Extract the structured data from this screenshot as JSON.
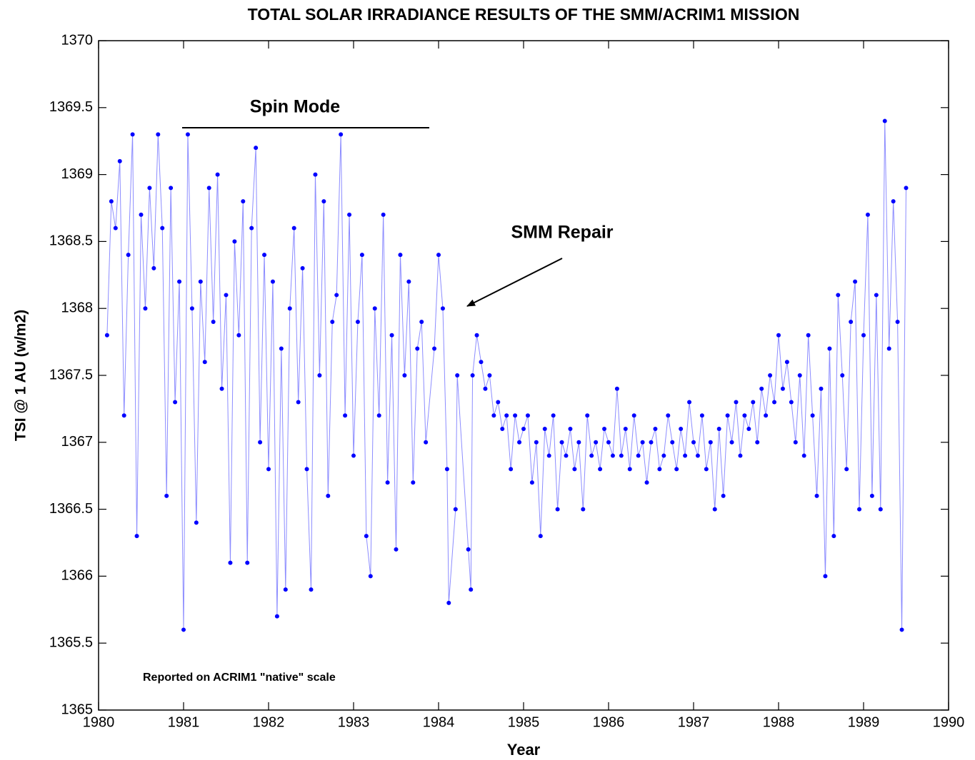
{
  "chart_data": {
    "type": "line",
    "title": "TOTAL SOLAR IRRADIANCE RESULTS OF THE SMM/ACRIM1 MISSION",
    "xlabel": "Year",
    "ylabel": "TSI @ 1 AU (w/m2)",
    "annotations": [
      "Spin Mode",
      "SMM Repair",
      "Reported on ACRIM1 \"native\" scale"
    ],
    "xlim": [
      1980,
      1990
    ],
    "xticks": [
      1980,
      1981,
      1982,
      1983,
      1984,
      1985,
      1986,
      1987,
      1988,
      1989,
      1990
    ],
    "ylim": [
      1365,
      1370
    ],
    "yticks": [
      1365,
      1365.5,
      1366,
      1366.5,
      1367,
      1367.5,
      1368,
      1368.5,
      1369,
      1369.5,
      1370
    ],
    "series": [
      {
        "name": "TSI",
        "color": "#0000ff",
        "x": [
          1980.1,
          1980.15,
          1980.2,
          1980.25,
          1980.3,
          1980.35,
          1980.4,
          1980.45,
          1980.5,
          1980.55,
          1980.6,
          1980.65,
          1980.7,
          1980.75,
          1980.8,
          1980.85,
          1980.9,
          1980.95,
          1981.0,
          1981.05,
          1981.1,
          1981.15,
          1981.2,
          1981.25,
          1981.3,
          1981.35,
          1981.4,
          1981.45,
          1981.5,
          1981.55,
          1981.6,
          1981.65,
          1981.7,
          1981.75,
          1981.8,
          1981.85,
          1981.9,
          1981.95,
          1982.0,
          1982.05,
          1982.1,
          1982.15,
          1982.2,
          1982.25,
          1982.3,
          1982.35,
          1982.4,
          1982.45,
          1982.5,
          1982.55,
          1982.6,
          1982.65,
          1982.7,
          1982.75,
          1982.8,
          1982.85,
          1982.9,
          1982.95,
          1983.0,
          1983.05,
          1983.1,
          1983.15,
          1983.2,
          1983.25,
          1983.3,
          1983.35,
          1983.4,
          1983.45,
          1983.5,
          1983.55,
          1983.6,
          1983.65,
          1983.7,
          1983.75,
          1983.8,
          1983.85,
          1983.95,
          1984.0,
          1984.05,
          1984.1,
          1984.12,
          1984.2,
          1984.22,
          1984.35,
          1984.38,
          1984.4,
          1984.45,
          1984.5,
          1984.55,
          1984.6,
          1984.65,
          1984.7,
          1984.75,
          1984.8,
          1984.85,
          1984.9,
          1984.95,
          1985.0,
          1985.05,
          1985.1,
          1985.15,
          1985.2,
          1985.25,
          1985.3,
          1985.35,
          1985.4,
          1985.45,
          1985.5,
          1985.55,
          1985.6,
          1985.65,
          1985.7,
          1985.75,
          1985.8,
          1985.85,
          1985.9,
          1985.95,
          1986.0,
          1986.05,
          1986.1,
          1986.15,
          1986.2,
          1986.25,
          1986.3,
          1986.35,
          1986.4,
          1986.45,
          1986.5,
          1986.55,
          1986.6,
          1986.65,
          1986.7,
          1986.75,
          1986.8,
          1986.85,
          1986.9,
          1986.95,
          1987.0,
          1987.05,
          1987.1,
          1987.15,
          1987.2,
          1987.25,
          1987.3,
          1987.35,
          1987.4,
          1987.45,
          1987.5,
          1987.55,
          1987.6,
          1987.65,
          1987.7,
          1987.75,
          1987.8,
          1987.85,
          1987.9,
          1987.95,
          1988.0,
          1988.05,
          1988.1,
          1988.15,
          1988.2,
          1988.25,
          1988.3,
          1988.35,
          1988.4,
          1988.45,
          1988.5,
          1988.55,
          1988.6,
          1988.65,
          1988.7,
          1988.75,
          1988.8,
          1988.85,
          1988.9,
          1988.95,
          1989.0,
          1989.05,
          1989.1,
          1989.15,
          1989.2,
          1989.25,
          1989.3,
          1989.35,
          1989.4,
          1989.45,
          1989.5
        ],
        "values": [
          1367.8,
          1368.8,
          1368.6,
          1369.1,
          1367.2,
          1368.4,
          1369.3,
          1366.3,
          1368.7,
          1368.0,
          1368.9,
          1368.3,
          1369.3,
          1368.6,
          1366.6,
          1368.9,
          1367.3,
          1368.2,
          1365.6,
          1369.3,
          1368.0,
          1366.4,
          1368.2,
          1367.6,
          1368.9,
          1367.9,
          1369.0,
          1367.4,
          1368.1,
          1366.1,
          1368.5,
          1367.8,
          1368.8,
          1366.1,
          1368.6,
          1369.2,
          1367.0,
          1368.4,
          1366.8,
          1368.2,
          1365.7,
          1367.7,
          1365.9,
          1368.0,
          1368.6,
          1367.3,
          1368.3,
          1366.8,
          1365.9,
          1369.0,
          1367.5,
          1368.8,
          1366.6,
          1367.9,
          1368.1,
          1369.3,
          1367.2,
          1368.7,
          1366.9,
          1367.9,
          1368.4,
          1366.3,
          1366.0,
          1368.0,
          1367.2,
          1368.7,
          1366.7,
          1367.8,
          1366.2,
          1368.4,
          1367.5,
          1368.2,
          1366.7,
          1367.7,
          1367.9,
          1367.0,
          1367.7,
          1368.4,
          1368.0,
          1366.8,
          1365.8,
          1366.5,
          1367.5,
          1366.2,
          1365.9,
          1367.5,
          1367.8,
          1367.6,
          1367.4,
          1367.5,
          1367.2,
          1367.3,
          1367.1,
          1367.2,
          1366.8,
          1367.2,
          1367.0,
          1367.1,
          1367.2,
          1366.7,
          1367.0,
          1366.3,
          1367.1,
          1366.9,
          1367.2,
          1366.5,
          1367.0,
          1366.9,
          1367.1,
          1366.8,
          1367.0,
          1366.5,
          1367.2,
          1366.9,
          1367.0,
          1366.8,
          1367.1,
          1367.0,
          1366.9,
          1367.4,
          1366.9,
          1367.1,
          1366.8,
          1367.2,
          1366.9,
          1367.0,
          1366.7,
          1367.0,
          1367.1,
          1366.8,
          1366.9,
          1367.2,
          1367.0,
          1366.8,
          1367.1,
          1366.9,
          1367.3,
          1367.0,
          1366.9,
          1367.2,
          1366.8,
          1367.0,
          1366.5,
          1367.1,
          1366.6,
          1367.2,
          1367.0,
          1367.3,
          1366.9,
          1367.2,
          1367.1,
          1367.3,
          1367.0,
          1367.4,
          1367.2,
          1367.5,
          1367.3,
          1367.8,
          1367.4,
          1367.6,
          1367.3,
          1367.0,
          1367.5,
          1366.9,
          1367.8,
          1367.2,
          1366.6,
          1367.4,
          1366.0,
          1367.7,
          1366.3,
          1368.1,
          1367.5,
          1366.8,
          1367.9,
          1368.2,
          1366.5,
          1367.8,
          1368.7,
          1366.6,
          1368.1,
          1366.5,
          1369.4,
          1367.7,
          1368.8,
          1367.9,
          1365.6,
          1368.9
        ]
      }
    ]
  }
}
